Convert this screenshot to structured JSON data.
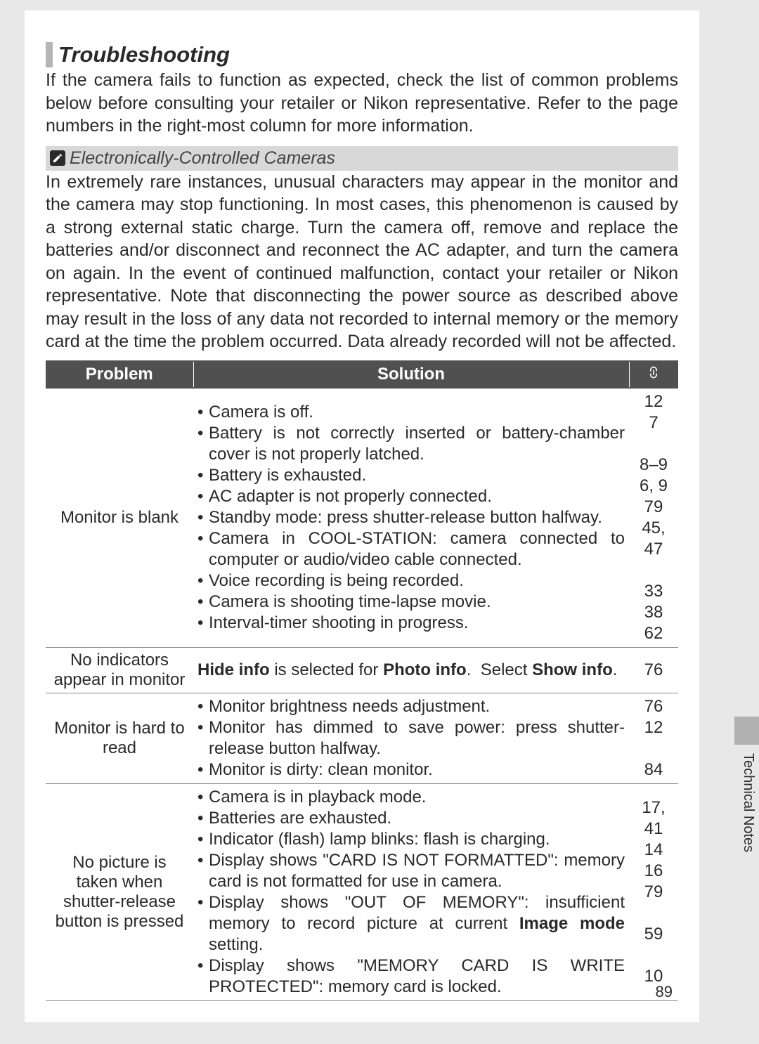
{
  "colors": {
    "page_bg": "#ffffff",
    "outer_bg": "#e8e8e8",
    "header_bg": "#505050",
    "header_fg": "#ffffff",
    "note_bg": "#d8d8d8",
    "side_tab_bg": "#b0b0b0",
    "text": "#2a2a2a",
    "title_accent": "#b5b5b5",
    "row_border": "#888888"
  },
  "fonts": {
    "body_size_pt": 19,
    "title_size_pt": 23,
    "table_size_pt": 18
  },
  "section_title": "Troubleshooting",
  "intro": "If the camera fails to function as expected, check the list of common problems below before consulting your retailer or Nikon representative.  Refer to the page numbers in the right-most column for more information.",
  "note": {
    "icon_name": "pencil-icon",
    "header": "Electronically-Controlled Cameras",
    "body": "In extremely rare instances, unusual characters may appear in the monitor and the camera may stop functioning.  In most cases, this phenomenon is caused by a strong external static charge.  Turn the camera off, remove and replace the batteries and/or disconnect and reconnect the AC adapter, and turn the camera on again.  In the event of continued malfunction, contact your retailer or Nikon representative.  Note that disconnecting the power source as described above may result in the loss of any data not recorded to internal memory or the memory card at the time the problem occurred.  Data already recorded will not be affected."
  },
  "table": {
    "headers": {
      "problem": "Problem",
      "solution": "Solution",
      "page_icon": "page-link-icon"
    },
    "rows": [
      {
        "problem": "Monitor is blank",
        "solutions": [
          "Camera is off.",
          "Battery is not correctly inserted or battery-chamber cover is not properly latched.",
          "Battery is exhausted.",
          "AC adapter is not properly connected.",
          "Standby mode: press shutter-release button halfway.",
          "Camera in COOL-STATION: camera connected to computer or audio/video cable connected.",
          "Voice recording is being recorded.",
          "Camera is shooting time-lapse movie.",
          "Interval-timer shooting in progress."
        ],
        "pages": [
          "12",
          "7",
          "",
          "8–9",
          "6, 9",
          "79",
          "45, 47",
          "",
          "33",
          "38",
          "62"
        ]
      },
      {
        "problem": "No indicators appear in monitor",
        "solution_html": "<b>Hide info</b> is selected for <b>Photo info</b>. &nbsp;Select <b>Show info</b>.",
        "pages": [
          "76"
        ]
      },
      {
        "problem": "Monitor is hard to read",
        "solutions": [
          "Monitor brightness needs adjustment.",
          "Monitor has dimmed to save power: press shutter-release button halfway.",
          "Monitor is dirty: clean monitor."
        ],
        "pages": [
          "76",
          "12",
          "",
          "84"
        ]
      },
      {
        "problem": "No picture is taken when shutter-release button is pressed",
        "solutions": [
          "Camera is in playback mode.",
          "Batteries are exhausted.",
          "Indicator (flash) lamp blinks: flash is charging.",
          "Display shows \"CARD IS NOT FORMATTED\": memory card is not formatted for use in camera.",
          "Display shows \"OUT OF MEMORY\": insufficient memory to record picture at current Image mode setting.",
          "Display shows \"MEMORY CARD IS WRITE PROTECTED\": memory card is locked."
        ],
        "solution_html_items": [
          "Camera is in playback mode.",
          "Batteries are exhausted.",
          "Indicator (flash) lamp blinks: flash is charging.",
          "Display shows \"CARD IS NOT FORMATTED\": memory card is not formatted for use in camera.",
          "Display shows \"OUT OF MEMORY\": insufficient memory to record picture at current <b>Image mode</b> setting.",
          "Display shows \"MEMORY CARD IS WRITE PROTECTED\": memory card is locked."
        ],
        "pages": [
          "17, 41",
          "14",
          "16",
          "79",
          "",
          "59",
          "",
          "10"
        ]
      }
    ]
  },
  "side_label": "Technical Notes",
  "page_number": "89"
}
